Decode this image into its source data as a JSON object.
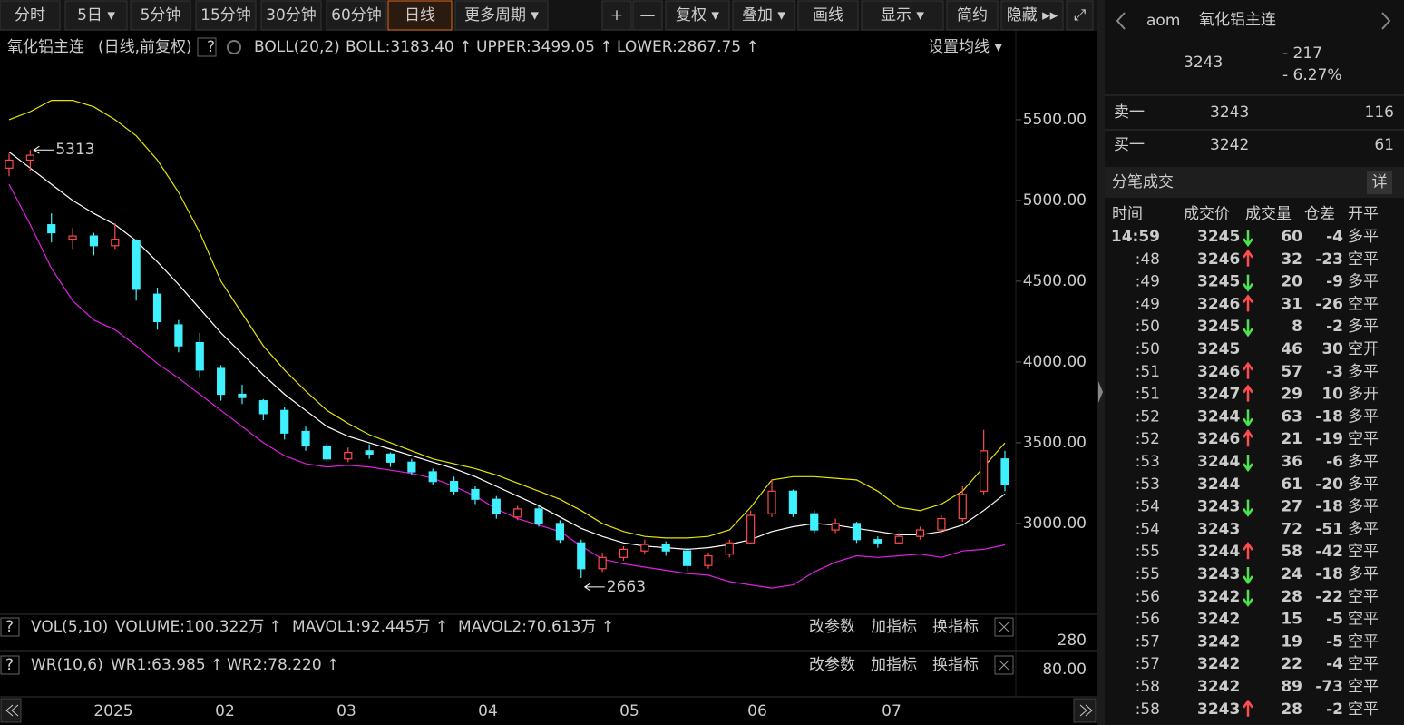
{
  "toolbar": [
    "分时",
    "5日 ▾",
    "5分钟",
    "15分钟",
    "30分钟",
    "60分钟",
    "日线",
    "更多周期 ▾",
    "+",
    "—",
    "复权 ▾",
    "叠加 ▾",
    "画线",
    "显示 ▾",
    "简约",
    "隐藏 ▸▸",
    "⤢"
  ],
  "legend": {
    "name": "氧化铝主连",
    "mode": "(日线,前复权)",
    "help": "?",
    "indicator": "BOLL(20,2)",
    "boll": "BOLL:3183.40 ↑",
    "upper": "UPPER:3499.05 ↑",
    "lower": "LOWER:2867.75 ↑",
    "settings": "设置均线 ▾"
  },
  "chart": {
    "type": "candlestick",
    "candles": [
      [
        5200,
        5290,
        5150,
        5250
      ],
      [
        5250,
        5313,
        5180,
        5280
      ],
      [
        4850,
        4920,
        4740,
        4800
      ],
      [
        4760,
        4830,
        4700,
        4780
      ],
      [
        4780,
        4800,
        4660,
        4720
      ],
      [
        4720,
        4860,
        4700,
        4760
      ],
      [
        4750,
        4760,
        4380,
        4450
      ],
      [
        4420,
        4460,
        4200,
        4250
      ],
      [
        4230,
        4260,
        4060,
        4100
      ],
      [
        4120,
        4180,
        3900,
        3950
      ],
      [
        3960,
        3980,
        3760,
        3800
      ],
      [
        3800,
        3860,
        3740,
        3780
      ],
      [
        3760,
        3770,
        3640,
        3680
      ],
      [
        3700,
        3720,
        3520,
        3560
      ],
      [
        3570,
        3600,
        3450,
        3480
      ],
      [
        3480,
        3500,
        3380,
        3400
      ],
      [
        3400,
        3470,
        3380,
        3440
      ],
      [
        3450,
        3490,
        3400,
        3430
      ],
      [
        3430,
        3440,
        3350,
        3380
      ],
      [
        3380,
        3400,
        3300,
        3320
      ],
      [
        3320,
        3340,
        3240,
        3260
      ],
      [
        3260,
        3290,
        3180,
        3200
      ],
      [
        3210,
        3230,
        3120,
        3150
      ],
      [
        3150,
        3170,
        3030,
        3060
      ],
      [
        3040,
        3110,
        3020,
        3090
      ],
      [
        3090,
        3110,
        2980,
        3000
      ],
      [
        3000,
        3020,
        2880,
        2900
      ],
      [
        2880,
        2900,
        2663,
        2720
      ],
      [
        2720,
        2820,
        2700,
        2790
      ],
      [
        2790,
        2860,
        2770,
        2840
      ],
      [
        2830,
        2900,
        2810,
        2870
      ],
      [
        2870,
        2890,
        2800,
        2830
      ],
      [
        2830,
        2850,
        2700,
        2740
      ],
      [
        2740,
        2820,
        2720,
        2800
      ],
      [
        2810,
        2900,
        2790,
        2880
      ],
      [
        2880,
        3080,
        2870,
        3050
      ],
      [
        3060,
        3270,
        3040,
        3200
      ],
      [
        3200,
        3210,
        3040,
        3060
      ],
      [
        3060,
        3080,
        2940,
        2960
      ],
      [
        2960,
        3030,
        2940,
        3000
      ],
      [
        3000,
        3010,
        2880,
        2900
      ],
      [
        2900,
        2920,
        2850,
        2880
      ],
      [
        2880,
        2940,
        2870,
        2920
      ],
      [
        2920,
        2980,
        2900,
        2960
      ],
      [
        2960,
        3050,
        2940,
        3030
      ],
      [
        3030,
        3230,
        3010,
        3180
      ],
      [
        3200,
        3580,
        3180,
        3450
      ],
      [
        3400,
        3450,
        3200,
        3243
      ]
    ],
    "boll_upper": [
      5500,
      5550,
      5620,
      5620,
      5580,
      5500,
      5400,
      5250,
      5050,
      4800,
      4500,
      4300,
      4100,
      3950,
      3820,
      3700,
      3620,
      3550,
      3500,
      3450,
      3400,
      3370,
      3340,
      3300,
      3250,
      3200,
      3150,
      3080,
      3000,
      2950,
      2920,
      2910,
      2910,
      2920,
      2960,
      3100,
      3270,
      3290,
      3290,
      3280,
      3270,
      3200,
      3100,
      3080,
      3120,
      3200,
      3350,
      3499.05
    ],
    "boll_mid": [
      5300,
      5200,
      5100,
      5000,
      4920,
      4850,
      4750,
      4620,
      4480,
      4330,
      4180,
      4050,
      3920,
      3800,
      3700,
      3600,
      3540,
      3500,
      3460,
      3420,
      3380,
      3340,
      3290,
      3230,
      3170,
      3110,
      3040,
      2970,
      2920,
      2880,
      2860,
      2850,
      2840,
      2850,
      2870,
      2900,
      2950,
      2980,
      3000,
      2990,
      2970,
      2950,
      2930,
      2930,
      2950,
      2990,
      3080,
      3183.4
    ],
    "boll_lower": [
      5100,
      4850,
      4580,
      4380,
      4260,
      4200,
      4100,
      3990,
      3900,
      3800,
      3700,
      3600,
      3500,
      3420,
      3370,
      3350,
      3360,
      3350,
      3330,
      3310,
      3280,
      3230,
      3170,
      3090,
      3030,
      2990,
      2950,
      2860,
      2780,
      2750,
      2730,
      2710,
      2690,
      2680,
      2640,
      2620,
      2600,
      2620,
      2700,
      2760,
      2800,
      2790,
      2800,
      2810,
      2790,
      2830,
      2840,
      2867.75
    ],
    "colors": {
      "up": "#ff4a4a",
      "down": "#3ff0ff",
      "upper": "#e6e600",
      "mid": "#ffffff",
      "lower": "#e020e0"
    },
    "ylim": [
      2449,
      5848
    ],
    "yticks": [
      {
        "value": 5500,
        "label": "5500.00"
      },
      {
        "value": 5000,
        "label": "5000.00"
      },
      {
        "value": 4500,
        "label": "4500.00"
      },
      {
        "value": 4000,
        "label": "4000.00"
      },
      {
        "value": 3500,
        "label": "3500.00"
      },
      {
        "value": 3000,
        "label": "3000.00"
      }
    ],
    "xticks": [
      "2025",
      "02",
      "03",
      "04",
      "05",
      "06",
      "07"
    ],
    "annotations": [
      {
        "value": 5313,
        "at": "high"
      },
      {
        "value": 2663,
        "at": "low"
      }
    ]
  },
  "vol": {
    "help": "?",
    "name": "VOL(5,10)",
    "volume": "VOLUME:100.322万 ↑",
    "mavol1": "MAVOL1:92.445万 ↑",
    "mavol2": "MAVOL2:70.613万 ↑",
    "axis": "280",
    "actions": [
      "改参数",
      "加指标",
      "换指标"
    ]
  },
  "wr": {
    "help": "?",
    "name": "WR(10,6)",
    "wr1": "WR1:63.985 ↑",
    "wr2": "WR2:78.220 ↑",
    "axis": "80.00",
    "actions": [
      "改参数",
      "加指标",
      "换指标"
    ]
  },
  "quote": {
    "code": "aom",
    "name": "氧化铝主连",
    "last": "3243",
    "change": "- 217",
    "pct": "- 6.27%",
    "ask": {
      "label": "卖一",
      "price": "3243",
      "vol": "116"
    },
    "bid": {
      "label": "买一",
      "price": "3242",
      "vol": "61"
    }
  },
  "ticks": {
    "title": "分笔成交",
    "detail": "详",
    "columns": [
      "时间",
      "成交价",
      "成交量",
      "仓差",
      "开平"
    ],
    "rows": [
      {
        "time": "14:59",
        "price": 3245,
        "dir": "down",
        "vol": 60,
        "diff": -4,
        "side": "多平",
        "color": "#4ee24e"
      },
      {
        "time": ":48",
        "price": 3246,
        "dir": "up",
        "vol": 32,
        "diff": -23,
        "side": "空平",
        "color": "#ff4d4d"
      },
      {
        "time": ":49",
        "price": 3245,
        "dir": "down",
        "vol": 20,
        "diff": -9,
        "side": "多平",
        "color": "#4ee24e"
      },
      {
        "time": ":49",
        "price": 3246,
        "dir": "up",
        "vol": 31,
        "diff": -26,
        "side": "空平",
        "color": "#ff4d4d"
      },
      {
        "time": ":50",
        "price": 3245,
        "dir": "down",
        "vol": 8,
        "diff": -2,
        "side": "多平",
        "color": "#4ee24e"
      },
      {
        "time": ":50",
        "price": 3245,
        "vol": 46,
        "diff": 30,
        "side": "空开",
        "color": "#4ee24e"
      },
      {
        "time": ":51",
        "price": 3246,
        "dir": "up",
        "vol": 57,
        "diff": -3,
        "side": "多平",
        "color": "#4ee24e"
      },
      {
        "time": ":51",
        "price": 3247,
        "dir": "up",
        "vol": 29,
        "diff": 10,
        "side": "多开",
        "color": "#ff4d4d"
      },
      {
        "time": ":52",
        "price": 3244,
        "dir": "down",
        "vol": 63,
        "diff": -18,
        "side": "多平",
        "color": "#4ee24e"
      },
      {
        "time": ":52",
        "price": 3246,
        "dir": "up",
        "vol": 21,
        "diff": -19,
        "side": "空平",
        "color": "#ff4d4d"
      },
      {
        "time": ":53",
        "price": 3244,
        "dir": "down",
        "vol": 36,
        "diff": -6,
        "side": "多平",
        "color": "#4ee24e"
      },
      {
        "time": ":53",
        "price": 3244,
        "vol": 61,
        "diff": -20,
        "side": "多平",
        "color": "#4ee24e"
      },
      {
        "time": ":54",
        "price": 3243,
        "dir": "down",
        "vol": 27,
        "diff": -18,
        "side": "多平",
        "color": "#4ee24e"
      },
      {
        "time": ":54",
        "price": 3243,
        "vol": 72,
        "diff": -51,
        "side": "多平",
        "color": "#4ee24e"
      },
      {
        "time": ":55",
        "price": 3244,
        "dir": "up",
        "vol": 58,
        "diff": -42,
        "side": "空平",
        "color": "#ff4d4d"
      },
      {
        "time": ":55",
        "price": 3243,
        "dir": "down",
        "vol": 24,
        "diff": -18,
        "side": "多平",
        "color": "#4ee24e"
      },
      {
        "time": ":56",
        "price": 3242,
        "dir": "down",
        "vol": 28,
        "diff": -22,
        "side": "空平",
        "color": "#ff4d4d"
      },
      {
        "time": ":56",
        "price": 3242,
        "vol": 15,
        "diff": -5,
        "side": "空平",
        "color": "#ff4d4d"
      },
      {
        "time": ":57",
        "price": 3242,
        "vol": 19,
        "diff": -5,
        "side": "空平",
        "color": "#ff4d4d"
      },
      {
        "time": ":57",
        "price": 3242,
        "vol": 22,
        "diff": -4,
        "side": "空平",
        "color": "#ff4d4d"
      },
      {
        "time": ":58",
        "price": 3242,
        "vol": 89,
        "diff": -73,
        "side": "空平",
        "color": "#ff4d4d"
      },
      {
        "time": ":58",
        "price": 3243,
        "dir": "up",
        "vol": 28,
        "diff": -2,
        "side": "空平",
        "color": "#ff4d4d"
      }
    ]
  }
}
